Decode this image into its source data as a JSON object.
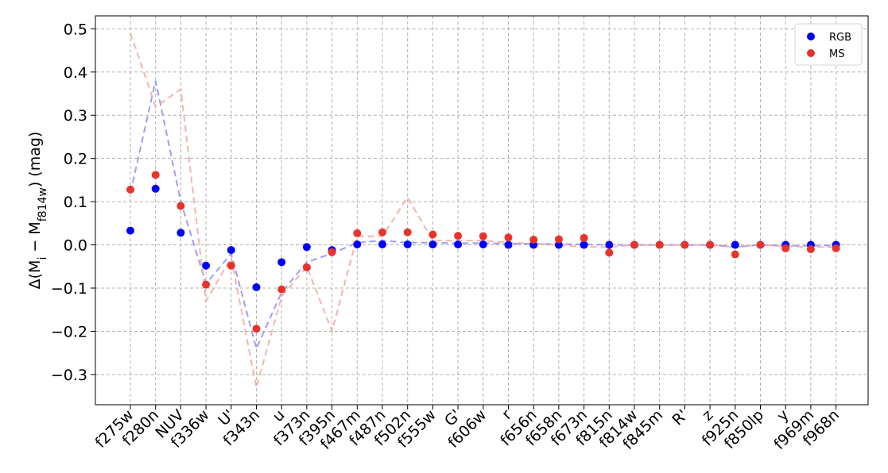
{
  "chart_data": {
    "type": "scatter",
    "categories": [
      "f275w",
      "f280n",
      "NUV",
      "f336w",
      "U'",
      "f343n",
      "u",
      "f373n",
      "f395n",
      "f467m",
      "f487n",
      "f502n",
      "f555w",
      "G'",
      "f606w",
      "r",
      "f656n",
      "f658n",
      "f673n",
      "f815n",
      "f814w",
      "f845m",
      "R'",
      "z",
      "f925n",
      "f850lp",
      "y",
      "f969m",
      "f968n"
    ],
    "ylabel_prefix": "Δ(M",
    "ylabel_sub1": "i",
    "ylabel_mid": " − M",
    "ylabel_sub2": "f814w",
    "ylabel_suffix": ") (mag)",
    "ylim": [
      -0.37,
      0.53
    ],
    "yticks": [
      0.5,
      0.4,
      0.3,
      0.2,
      0.1,
      0.0,
      -0.1,
      -0.2,
      -0.3
    ],
    "ytick_labels": [
      "0.5",
      "0.4",
      "0.3",
      "0.2",
      "0.1",
      "0.0",
      "−0.1",
      "−0.2",
      "−0.3"
    ],
    "grid": true,
    "legend_position": "top-right",
    "series": [
      {
        "name": "RGB",
        "color": "#0000ff",
        "marker": "circle",
        "values": [
          0.033,
          0.13,
          0.028,
          -0.048,
          -0.012,
          -0.098,
          -0.04,
          -0.005,
          -0.012,
          0.001,
          0.001,
          0.001,
          0.001,
          0.001,
          0.001,
          0.0,
          0.0,
          0.0,
          0.0,
          0.0,
          0.0,
          0.0,
          0.0,
          0.0,
          0.0,
          0.0,
          0.0,
          0.0,
          0.0
        ],
        "line_values": [
          0.12,
          0.38,
          0.1,
          -0.09,
          -0.02,
          -0.24,
          -0.11,
          -0.04,
          -0.02,
          0.005,
          0.01,
          0.005,
          0.005,
          0.004,
          0.004,
          0.003,
          0.002,
          0.002,
          0.001,
          0.0,
          0.0,
          0.0,
          0.0,
          0.0,
          -0.005,
          0.0,
          -0.002,
          -0.002,
          -0.001
        ]
      },
      {
        "name": "MS",
        "color": "#e8332a",
        "marker": "circle",
        "values": [
          0.128,
          0.162,
          0.09,
          -0.092,
          -0.048,
          -0.194,
          -0.103,
          -0.052,
          -0.017,
          0.027,
          0.029,
          0.029,
          0.024,
          0.021,
          0.02,
          0.017,
          0.012,
          0.013,
          0.016,
          -0.018,
          0.0,
          0.0,
          0.0,
          0.0,
          -0.022,
          0.0,
          -0.008,
          -0.01,
          -0.008
        ],
        "line_values": [
          0.49,
          0.32,
          0.36,
          -0.13,
          -0.03,
          -0.33,
          -0.12,
          -0.05,
          -0.2,
          0.02,
          0.02,
          0.11,
          0.01,
          0.01,
          0.01,
          0.005,
          0.003,
          0.0,
          -0.005,
          -0.005,
          0.0,
          0.0,
          0.0,
          0.0,
          -0.005,
          0.0,
          -0.003,
          -0.005,
          -0.005
        ]
      }
    ]
  }
}
